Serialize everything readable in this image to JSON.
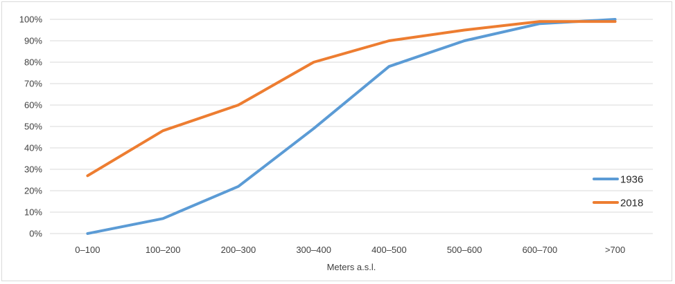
{
  "chart_data": {
    "type": "line",
    "title": "",
    "xlabel": "Meters a.s.l.",
    "ylabel": "",
    "categories": [
      "0–100",
      "100–200",
      "200–300",
      "300–400",
      "400–500",
      "500–600",
      "600–700",
      ">700"
    ],
    "y_ticks": [
      "0%",
      "10%",
      "20%",
      "30%",
      "40%",
      "50%",
      "60%",
      "70%",
      "80%",
      "90%",
      "100%"
    ],
    "ylim": [
      0,
      100
    ],
    "y_unit": "percent",
    "grid": "horizontal",
    "legend_position": "right",
    "series": [
      {
        "name": "1936",
        "color": "#5b9bd5",
        "values": [
          0,
          7,
          22,
          49,
          78,
          90,
          98,
          100
        ]
      },
      {
        "name": "2018",
        "color": "#ed7d31",
        "values": [
          27,
          48,
          60,
          80,
          90,
          95,
          99,
          99
        ]
      }
    ]
  }
}
